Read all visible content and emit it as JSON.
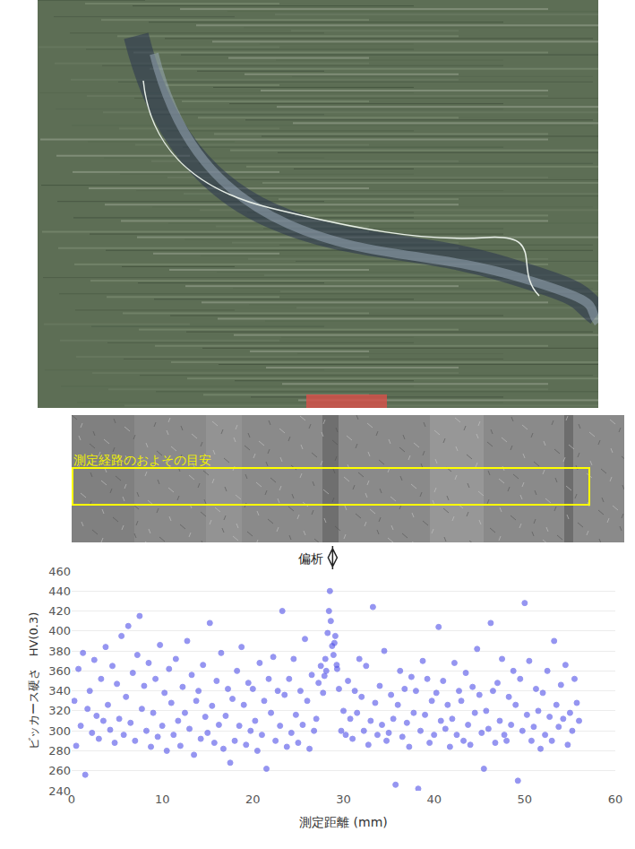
{
  "micrograph": {
    "label": "測定経路のおよその目安"
  },
  "chart_data": {
    "type": "scatter",
    "x_label": "測定距離 (mm)",
    "y_label": "ビッカース硬さ　HV(0.3)",
    "xlim": [
      0,
      60
    ],
    "xticks": [
      0,
      10,
      20,
      30,
      40,
      50,
      60
    ],
    "ylim": [
      240,
      460
    ],
    "yticks": [
      240,
      260,
      280,
      300,
      320,
      340,
      360,
      380,
      400,
      420,
      440,
      460
    ],
    "grid": true,
    "annotations": [
      {
        "text": "偏析",
        "x": 28.8
      }
    ],
    "series": [
      {
        "color": "#5050e8",
        "marker": "circle",
        "x": [
          0.3,
          0.5,
          0.75,
          1,
          1.25,
          1.5,
          1.75,
          2,
          2.25,
          2.5,
          2.75,
          3,
          3.25,
          3.5,
          3.75,
          4,
          4.25,
          4.5,
          4.75,
          5,
          5.25,
          5.5,
          5.75,
          6,
          6.25,
          6.5,
          6.75,
          7,
          7.25,
          7.5,
          7.75,
          8,
          8.25,
          8.5,
          8.75,
          9,
          9.25,
          9.5,
          9.75,
          10,
          10.25,
          10.5,
          10.75,
          11,
          11.25,
          11.5,
          11.75,
          12,
          12.25,
          12.5,
          12.75,
          13,
          13.25,
          13.5,
          13.75,
          14,
          14.25,
          14.5,
          14.75,
          15,
          15.25,
          15.5,
          15.75,
          16,
          16.25,
          16.5,
          16.75,
          17,
          17.25,
          17.5,
          17.75,
          18,
          18.25,
          18.5,
          18.75,
          19,
          19.25,
          19.5,
          19.75,
          20,
          20.25,
          20.5,
          20.75,
          21,
          21.25,
          21.5,
          21.75,
          22,
          22.25,
          22.5,
          22.75,
          23,
          23.25,
          23.5,
          23.75,
          24,
          24.25,
          24.5,
          24.75,
          25,
          25.25,
          25.5,
          25.75,
          26,
          26.25,
          26.5,
          26.75,
          27,
          27.25,
          27.5,
          27.75,
          27.9,
          28,
          28.1,
          28.25,
          28.4,
          28.5,
          28.6,
          28.75,
          28.9,
          29,
          29.1,
          29.25,
          29.3,
          29.5,
          29.75,
          30,
          30.25,
          30.5,
          30.75,
          31,
          31.25,
          31.5,
          31.75,
          32,
          32.25,
          32.5,
          32.75,
          33,
          33.25,
          33.5,
          33.75,
          34,
          34.25,
          34.5,
          34.75,
          35,
          35.25,
          35.5,
          35.75,
          36,
          36.25,
          36.5,
          36.75,
          37,
          37.25,
          37.5,
          37.75,
          38,
          38.25,
          38.5,
          38.75,
          39,
          39.25,
          39.5,
          39.75,
          40,
          40.25,
          40.5,
          40.75,
          41,
          41.25,
          41.5,
          41.75,
          42,
          42.25,
          42.5,
          42.75,
          43,
          43.25,
          43.5,
          43.75,
          44,
          44.25,
          44.5,
          44.75,
          45,
          45.25,
          45.5,
          45.75,
          46,
          46.25,
          46.5,
          46.75,
          47,
          47.25,
          47.5,
          47.75,
          48,
          48.25,
          48.5,
          48.75,
          49,
          49.25,
          49.5,
          49.75,
          50,
          50.25,
          50.5,
          50.75,
          51,
          51.25,
          51.5,
          51.75,
          52,
          52.25,
          52.5,
          52.75,
          53,
          53.25,
          53.5,
          53.75,
          54,
          54.25,
          54.5,
          54.75,
          55,
          55.25,
          55.5,
          55.75,
          56
        ],
        "values": [
          330,
          285,
          362,
          305,
          378,
          256,
          322,
          340,
          298,
          371,
          315,
          292,
          352,
          310,
          384,
          326,
          301,
          365,
          288,
          347,
          312,
          395,
          296,
          334,
          405,
          308,
          358,
          290,
          376,
          415,
          322,
          345,
          300,
          368,
          284,
          318,
          352,
          294,
          386,
          305,
          338,
          280,
          362,
          328,
          296,
          372,
          310,
          285,
          344,
          318,
          390,
          302,
          356,
          276,
          330,
          340,
          292,
          366,
          314,
          298,
          408,
          325,
          288,
          350,
          306,
          378,
          282,
          315,
          342,
          268,
          332,
          290,
          360,
          305,
          384,
          326,
          286,
          348,
          300,
          342,
          310,
          280,
          368,
          296,
          330,
          262,
          352,
          318,
          374,
          290,
          340,
          305,
          420,
          336,
          284,
          352,
          298,
          372,
          316,
          288,
          340,
          306,
          392,
          330,
          282,
          356,
          300,
          312,
          348,
          365,
          338,
          355,
          372,
          360,
          398,
          420,
          440,
          410,
          385,
          376,
          388,
          395,
          366,
          362,
          342,
          300,
          320,
          296,
          350,
          312,
          292,
          340,
          318,
          372,
          334,
          300,
          365,
          286,
          310,
          424,
          328,
          296,
          345,
          306,
          380,
          290,
          298,
          336,
          312,
          246,
          326,
          360,
          294,
          342,
          308,
          284,
          354,
          318,
          340,
          242,
          300,
          370,
          316,
          352,
          288,
          330,
          296,
          338,
          404,
          310,
          350,
          302,
          326,
          284,
          312,
          368,
          296,
          340,
          330,
          290,
          358,
          306,
          286,
          344,
          318,
          382,
          336,
          298,
          262,
          320,
          302,
          408,
          340,
          288,
          348,
          310,
          372,
          296,
          290,
          334,
          306,
          360,
          326,
          250,
          352,
          300,
          428,
          316,
          370,
          290,
          304,
          342,
          320,
          282,
          338,
          296,
          360,
          314,
          290,
          390,
          326,
          304,
          346,
          312,
          366,
          286,
          318,
          300,
          352,
          328,
          310
        ]
      }
    ]
  }
}
